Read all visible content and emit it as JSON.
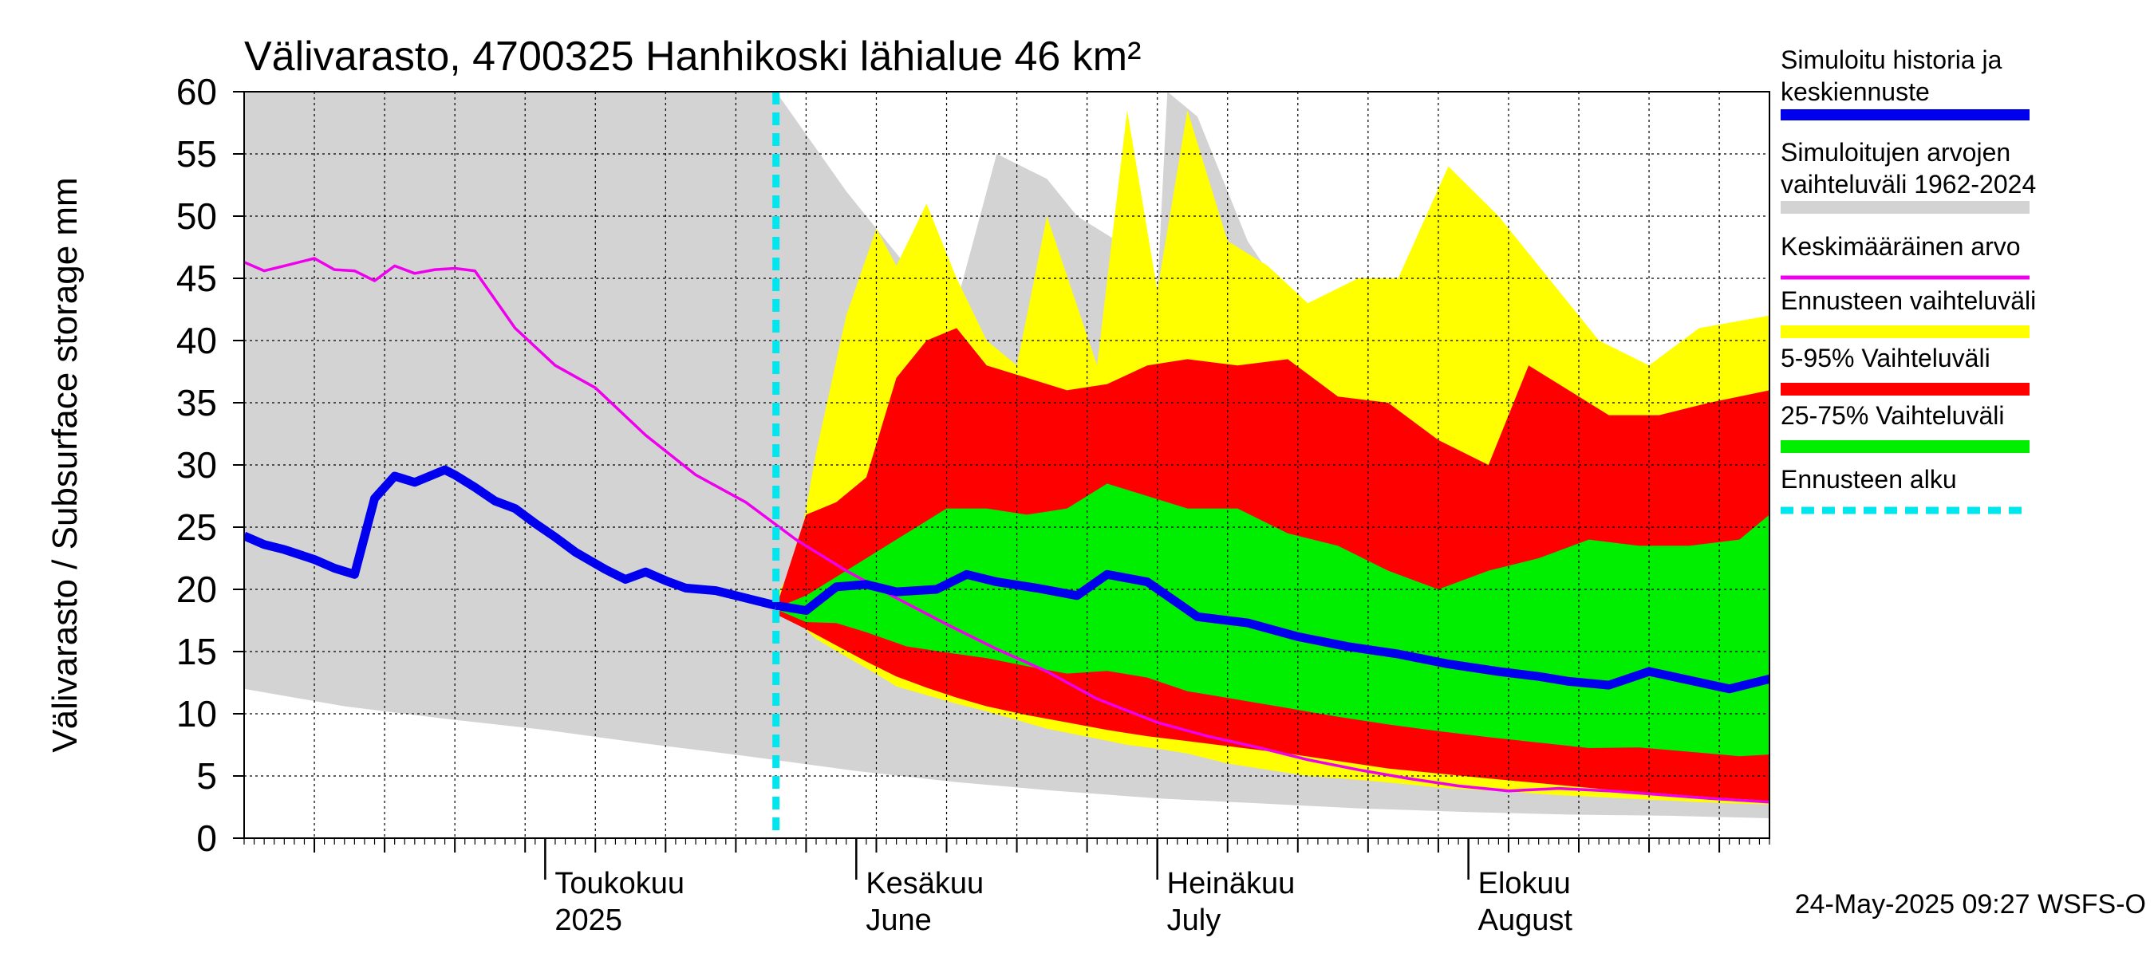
{
  "chart_data": {
    "type": "area",
    "title": "Välivarasto, 4700325 Hanhikoski lähialue 46 km²",
    "ylabel": "Välivarasto / Subsurface storage  mm",
    "ylim": [
      0,
      60
    ],
    "yticks": [
      0,
      5,
      10,
      15,
      20,
      25,
      30,
      35,
      40,
      45,
      50,
      55,
      60
    ],
    "xlim": [
      "2025-04-01",
      "2025-08-31"
    ],
    "x_month_labels": [
      {
        "date": "2025-05-01",
        "fi": "Toukokuu",
        "en": "2025"
      },
      {
        "date": "2025-06-01",
        "fi": "Kesäkuu",
        "en": "June"
      },
      {
        "date": "2025-07-01",
        "fi": "Heinäkuu",
        "en": "July"
      },
      {
        "date": "2025-08-01",
        "fi": "Elokuu",
        "en": "August"
      }
    ],
    "forecast_start": "2025-05-24",
    "timestamp": "24-May-2025 09:27 WSFS-O",
    "grid": true,
    "legend_position": "right",
    "legend": [
      {
        "key": "sim",
        "line1": "Simuloitu historia ja",
        "line2": "keskiennuste",
        "color": "#0000ee",
        "style": "thick-line"
      },
      {
        "key": "hist",
        "line1": "Simuloitujen arvojen",
        "line2": "vaihteluväli 1962-2024",
        "color": "#d3d3d3",
        "style": "band"
      },
      {
        "key": "mean",
        "line1": "Keskimääräinen arvo",
        "line2": "",
        "color": "#ee00ee",
        "style": "line"
      },
      {
        "key": "ens",
        "line1": "Ennusteen vaihteluväli",
        "line2": "",
        "color": "#ffff00",
        "style": "band"
      },
      {
        "key": "p595",
        "line1": "5-95% Vaihteluväli",
        "line2": "",
        "color": "#ff0000",
        "style": "band"
      },
      {
        "key": "p2575",
        "line1": "25-75% Vaihteluväli",
        "line2": "",
        "color": "#00ee00",
        "style": "band"
      },
      {
        "key": "fstart",
        "line1": "Ennusteen alku",
        "line2": "",
        "color": "#00e5ee",
        "style": "dashed"
      }
    ],
    "series": {
      "hist_band": {
        "x": [
          "2025-04-01",
          "2025-05-24",
          "2025-05-31",
          "2025-06-06",
          "2025-06-11",
          "2025-06-15",
          "2025-06-20",
          "2025-06-23",
          "2025-06-27",
          "2025-07-01",
          "2025-07-02",
          "2025-07-05",
          "2025-07-10",
          "2025-07-15",
          "2025-07-20",
          "2025-08-31"
        ],
        "upper": [
          60,
          60,
          52,
          46,
          43,
          55,
          53,
          50,
          48,
          44,
          60,
          58,
          48,
          42,
          39,
          34
        ],
        "lower_x": [
          "2025-04-01",
          "2025-04-11",
          "2025-04-21",
          "2025-05-01",
          "2025-05-11",
          "2025-05-21",
          "2025-06-01",
          "2025-06-11",
          "2025-06-21",
          "2025-07-01",
          "2025-07-11",
          "2025-07-21",
          "2025-08-01",
          "2025-08-11",
          "2025-08-21",
          "2025-08-31"
        ],
        "lower": [
          12,
          10.6,
          9.6,
          8.7,
          7.6,
          6.6,
          5.4,
          4.5,
          3.8,
          3.2,
          2.8,
          2.4,
          2.1,
          1.9,
          1.8,
          1.6
        ]
      },
      "sim_history": {
        "x": [
          "2025-04-01",
          "2025-04-03",
          "2025-04-05",
          "2025-04-08",
          "2025-04-10",
          "2025-04-12",
          "2025-04-14",
          "2025-04-16",
          "2025-04-18",
          "2025-04-21",
          "2025-04-22",
          "2025-04-24",
          "2025-04-26",
          "2025-04-28",
          "2025-04-30",
          "2025-05-02",
          "2025-05-04",
          "2025-05-07",
          "2025-05-09",
          "2025-05-11",
          "2025-05-13",
          "2025-05-15",
          "2025-05-18",
          "2025-05-20",
          "2025-05-24"
        ],
        "y": [
          24.3,
          23.6,
          23.2,
          22.4,
          21.7,
          21.2,
          27.3,
          29.1,
          28.6,
          29.6,
          29.2,
          28.2,
          27.1,
          26.5,
          25.3,
          24.2,
          23.0,
          21.6,
          20.8,
          21.4,
          20.7,
          20.1,
          19.9,
          19.5,
          18.7
        ]
      },
      "sim_forecast": {
        "x": [
          "2025-05-24",
          "2025-05-27",
          "2025-05-30",
          "2025-06-02",
          "2025-06-05",
          "2025-06-09",
          "2025-06-12",
          "2025-06-15",
          "2025-06-19",
          "2025-06-23",
          "2025-06-26",
          "2025-06-30",
          "2025-07-05",
          "2025-07-10",
          "2025-07-15",
          "2025-07-20",
          "2025-07-25",
          "2025-07-30",
          "2025-08-04",
          "2025-08-08",
          "2025-08-11",
          "2025-08-15",
          "2025-08-19",
          "2025-08-23",
          "2025-08-27",
          "2025-08-31"
        ],
        "y": [
          18.7,
          18.3,
          20.2,
          20.4,
          19.8,
          20.0,
          21.2,
          20.6,
          20.1,
          19.5,
          21.2,
          20.6,
          17.8,
          17.3,
          16.2,
          15.4,
          14.8,
          14.0,
          13.4,
          13.0,
          12.6,
          12.3,
          13.4,
          12.7,
          12.0,
          12.8
        ]
      },
      "mean": {
        "x": [
          "2025-04-01",
          "2025-04-03",
          "2025-04-05",
          "2025-04-08",
          "2025-04-10",
          "2025-04-12",
          "2025-04-14",
          "2025-04-16",
          "2025-04-18",
          "2025-04-20",
          "2025-04-22",
          "2025-04-24",
          "2025-04-28",
          "2025-05-02",
          "2025-05-06",
          "2025-05-11",
          "2025-05-16",
          "2025-05-21",
          "2025-05-26",
          "2025-05-31",
          "2025-06-05",
          "2025-06-10",
          "2025-06-15",
          "2025-06-20",
          "2025-06-25",
          "2025-07-01",
          "2025-07-06",
          "2025-07-11",
          "2025-07-16",
          "2025-07-21",
          "2025-07-26",
          "2025-07-31",
          "2025-08-05",
          "2025-08-10",
          "2025-08-15",
          "2025-08-20",
          "2025-08-25",
          "2025-08-31"
        ],
        "y": [
          46.3,
          45.6,
          46.0,
          46.6,
          45.7,
          45.6,
          44.8,
          46.0,
          45.4,
          45.7,
          45.8,
          45.6,
          41.0,
          38.0,
          36.2,
          32.4,
          29.2,
          27.0,
          24.0,
          21.5,
          19.3,
          17.2,
          15.2,
          13.4,
          11.2,
          9.3,
          8.2,
          7.3,
          6.3,
          5.5,
          4.8,
          4.2,
          3.8,
          4.0,
          3.8,
          3.5,
          3.2,
          2.9
        ]
      },
      "ens_band": {
        "x": [
          "2025-05-24",
          "2025-05-26",
          "2025-05-28",
          "2025-05-31",
          "2025-06-03",
          "2025-06-05",
          "2025-06-08",
          "2025-06-11",
          "2025-06-14",
          "2025-06-17",
          "2025-06-20",
          "2025-06-25",
          "2025-06-28",
          "2025-07-01",
          "2025-07-04",
          "2025-07-08",
          "2025-07-12",
          "2025-07-16",
          "2025-07-21",
          "2025-07-25",
          "2025-07-30",
          "2025-08-04",
          "2025-08-09",
          "2025-08-14",
          "2025-08-19",
          "2025-08-24",
          "2025-08-31"
        ],
        "upper": [
          19.5,
          22,
          31,
          42,
          49,
          46,
          51,
          45,
          40,
          38,
          50,
          38,
          58.5,
          44,
          58.5,
          48,
          46,
          43,
          45,
          45,
          54,
          50,
          45,
          40,
          38,
          41,
          42
        ],
        "lower": [
          19.0,
          17.5,
          16.0,
          14.6,
          13.2,
          12.2,
          11.5,
          10.8,
          10.2,
          9.5,
          8.8,
          8.0,
          7.5,
          7.2,
          6.8,
          6.0,
          5.5,
          5.0,
          4.7,
          4.4,
          4.0,
          3.8,
          3.5,
          3.3,
          3.1,
          2.9,
          2.7
        ]
      },
      "p595_band": {
        "x": [
          "2025-05-24",
          "2025-05-27",
          "2025-05-30",
          "2025-06-02",
          "2025-06-05",
          "2025-06-08",
          "2025-06-11",
          "2025-06-14",
          "2025-06-18",
          "2025-06-22",
          "2025-06-26",
          "2025-06-30",
          "2025-07-04",
          "2025-07-09",
          "2025-07-14",
          "2025-07-19",
          "2025-07-24",
          "2025-07-29",
          "2025-08-03",
          "2025-08-07",
          "2025-08-11",
          "2025-08-15",
          "2025-08-20",
          "2025-08-25",
          "2025-08-31"
        ],
        "upper": [
          18.5,
          26,
          27,
          29,
          37,
          40,
          41,
          38,
          37,
          36,
          36.5,
          38,
          38.5,
          38,
          38.5,
          35.5,
          35,
          32,
          30,
          38,
          36,
          34,
          34,
          35,
          36
        ],
        "lower": [
          18.0,
          16.8,
          15.5,
          14.2,
          13.0,
          12.1,
          11.3,
          10.6,
          9.9,
          9.3,
          8.7,
          8.2,
          7.8,
          7.3,
          6.8,
          6.2,
          5.6,
          5.2,
          4.8,
          4.5,
          4.2,
          3.9,
          3.6,
          3.3,
          3.0
        ]
      },
      "p2575_band": {
        "x": [
          "2025-05-24",
          "2025-05-27",
          "2025-05-30",
          "2025-06-02",
          "2025-06-06",
          "2025-06-10",
          "2025-06-14",
          "2025-06-18",
          "2025-06-22",
          "2025-06-26",
          "2025-06-30",
          "2025-07-04",
          "2025-07-09",
          "2025-07-14",
          "2025-07-19",
          "2025-07-24",
          "2025-07-29",
          "2025-08-03",
          "2025-08-08",
          "2025-08-13",
          "2025-08-18",
          "2025-08-23",
          "2025-08-28",
          "2025-08-31"
        ],
        "upper": [
          18.5,
          19.5,
          21.0,
          22.5,
          24.5,
          26.5,
          26.5,
          26.0,
          26.5,
          28.5,
          27.5,
          26.5,
          26.5,
          24.5,
          23.5,
          21.5,
          20.0,
          21.5,
          22.5,
          24.0,
          23.5,
          23.5,
          24.0,
          26.0
        ]
      }
    }
  }
}
